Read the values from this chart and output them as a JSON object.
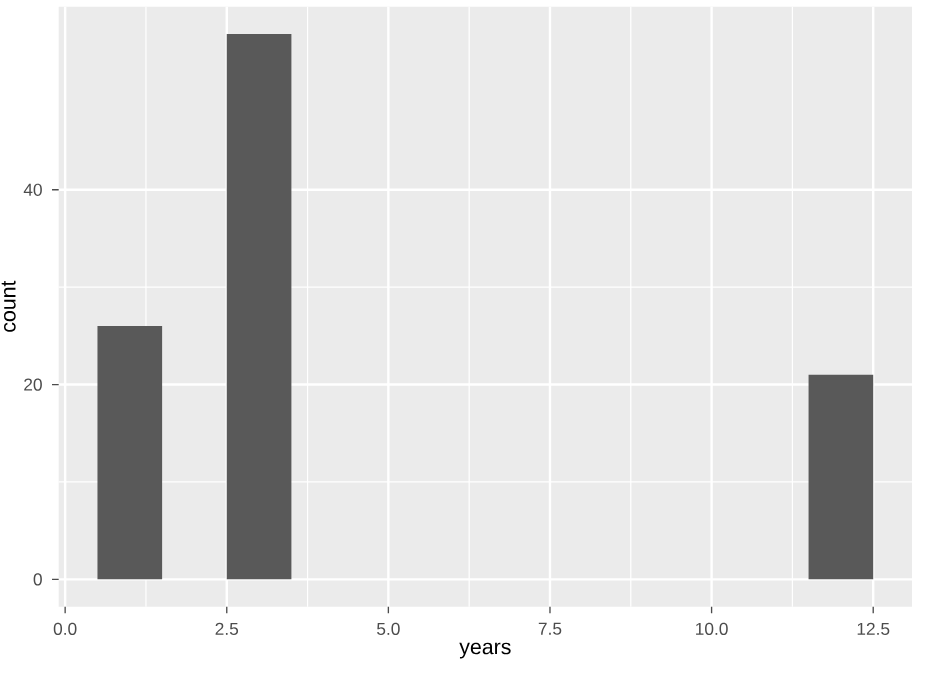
{
  "chart_data": {
    "type": "histogram",
    "xlabel": "years",
    "ylabel": "count",
    "bins": [
      0.5,
      1.5,
      2.5,
      3.5,
      4.5,
      5.5,
      6.5,
      7.5,
      8.5,
      9.5,
      10.5,
      11.5,
      12.5
    ],
    "values": [
      26,
      0,
      56,
      0,
      0,
      0,
      0,
      0,
      0,
      0,
      0,
      21
    ],
    "color": "#595959",
    "xlim": [
      -0.1,
      13.1
    ],
    "ylim": [
      -2.8,
      58.8
    ],
    "xticks": [
      {
        "value": 0,
        "label": "0.0"
      },
      {
        "value": 2.5,
        "label": "2.5"
      },
      {
        "value": 5,
        "label": "5.0"
      },
      {
        "value": 7.5,
        "label": "7.5"
      },
      {
        "value": 10,
        "label": "10.0"
      },
      {
        "value": 12.5,
        "label": "12.5"
      }
    ],
    "yticks": [
      0,
      20,
      40
    ],
    "grid": true
  }
}
